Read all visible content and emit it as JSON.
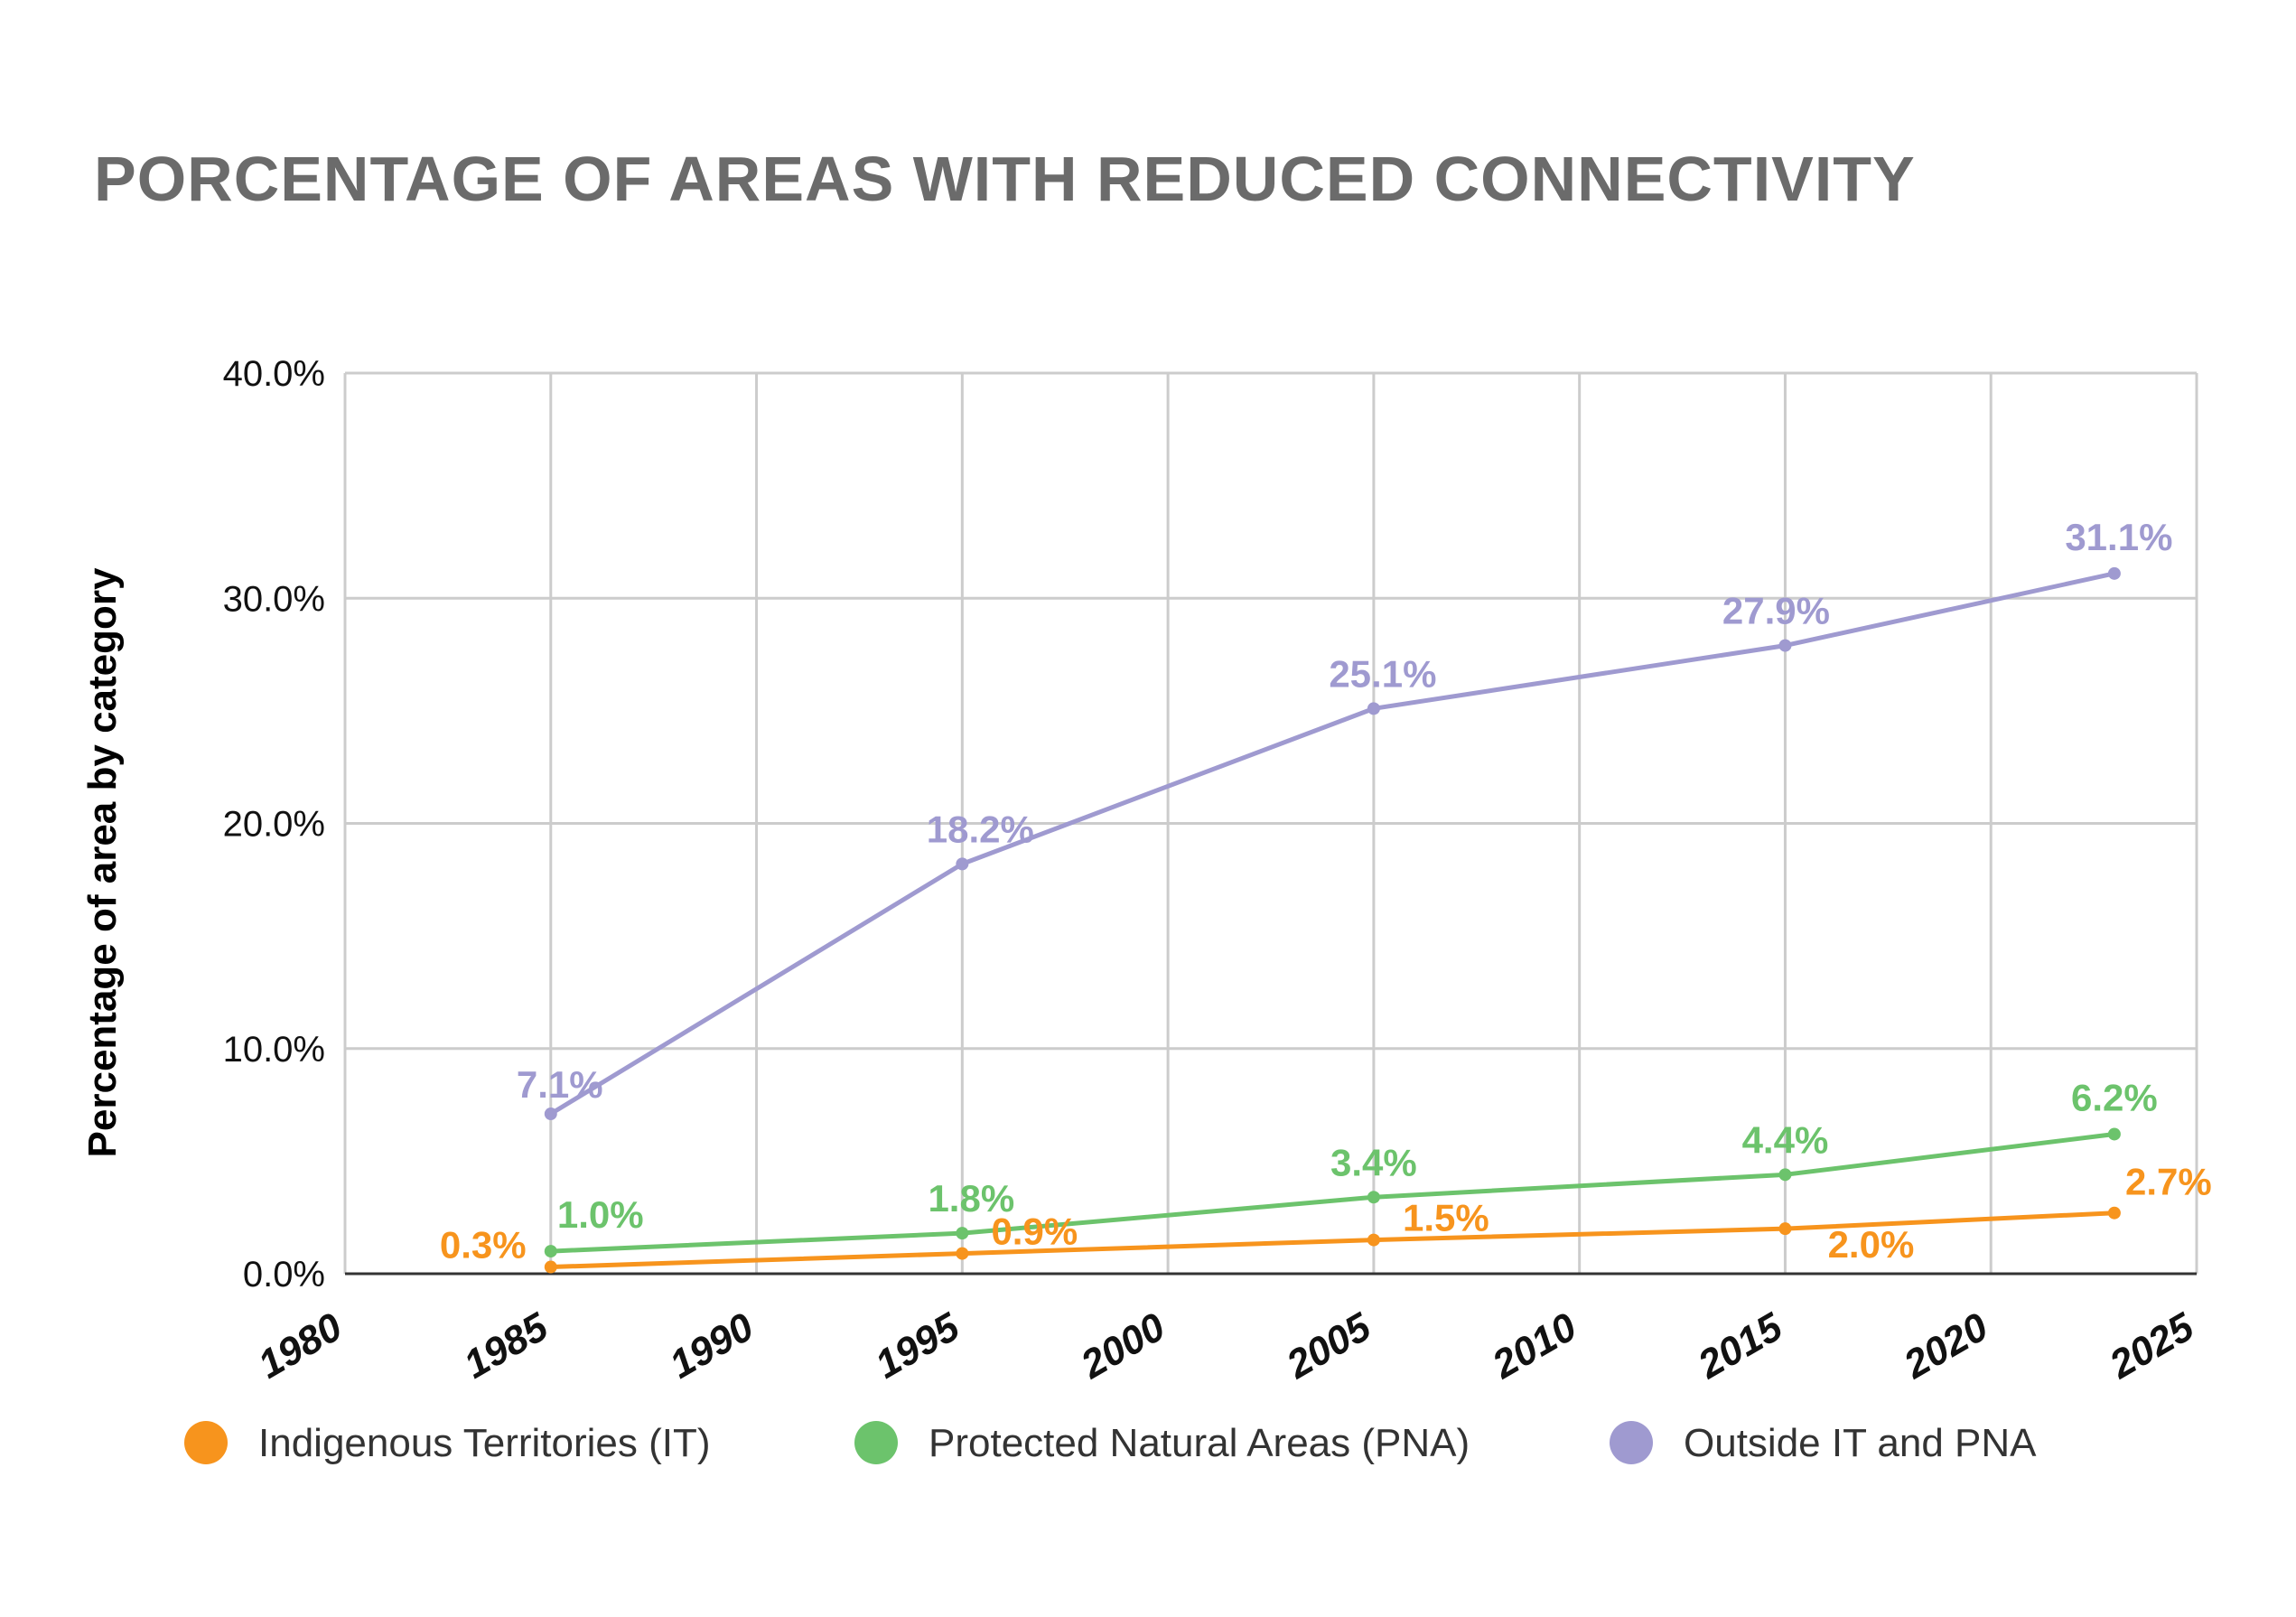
{
  "chart_data": {
    "type": "line",
    "title": "PORCENTAGE OF AREAS WITH REDUCED CONNECTIVITY",
    "xlabel": "",
    "ylabel": "Percentage of area by category",
    "x_ticks": [
      "1980",
      "1985",
      "1990",
      "1995",
      "2000",
      "2005",
      "2010",
      "2015",
      "2020",
      "2025"
    ],
    "y_ticks": [
      "0.0%",
      "10.0%",
      "20.0%",
      "30.0%",
      "40.0%"
    ],
    "xlim": [
      1980,
      2025
    ],
    "ylim": [
      0,
      40
    ],
    "grid": true,
    "legend_position": "bottom",
    "series": [
      {
        "name": "Indigenous Territories (IT)",
        "color": "#f7941d",
        "x": [
          1985,
          1995,
          2005,
          2015,
          2023
        ],
        "values": [
          0.3,
          0.9,
          1.5,
          2.0,
          2.7
        ],
        "labels": [
          "0.3%",
          "0.9%",
          "1.5%",
          "2.0%",
          "2.7%"
        ]
      },
      {
        "name": "Protected Natural Areas (PNA)",
        "color": "#6cc36c",
        "x": [
          1985,
          1995,
          2005,
          2015,
          2023
        ],
        "values": [
          1.0,
          1.8,
          3.4,
          4.4,
          6.2
        ],
        "labels": [
          "1.0%",
          "1.8%",
          "3.4%",
          "4.4%",
          "6.2%"
        ]
      },
      {
        "name": "Outside IT and PNA",
        "color": "#9f9ad0",
        "x": [
          1985,
          1995,
          2005,
          2015,
          2023
        ],
        "values": [
          7.1,
          18.2,
          25.1,
          27.9,
          31.1
        ],
        "labels": [
          "7.1%",
          "18.2%",
          "25.1%",
          "27.9%",
          "31.1%"
        ]
      }
    ]
  }
}
